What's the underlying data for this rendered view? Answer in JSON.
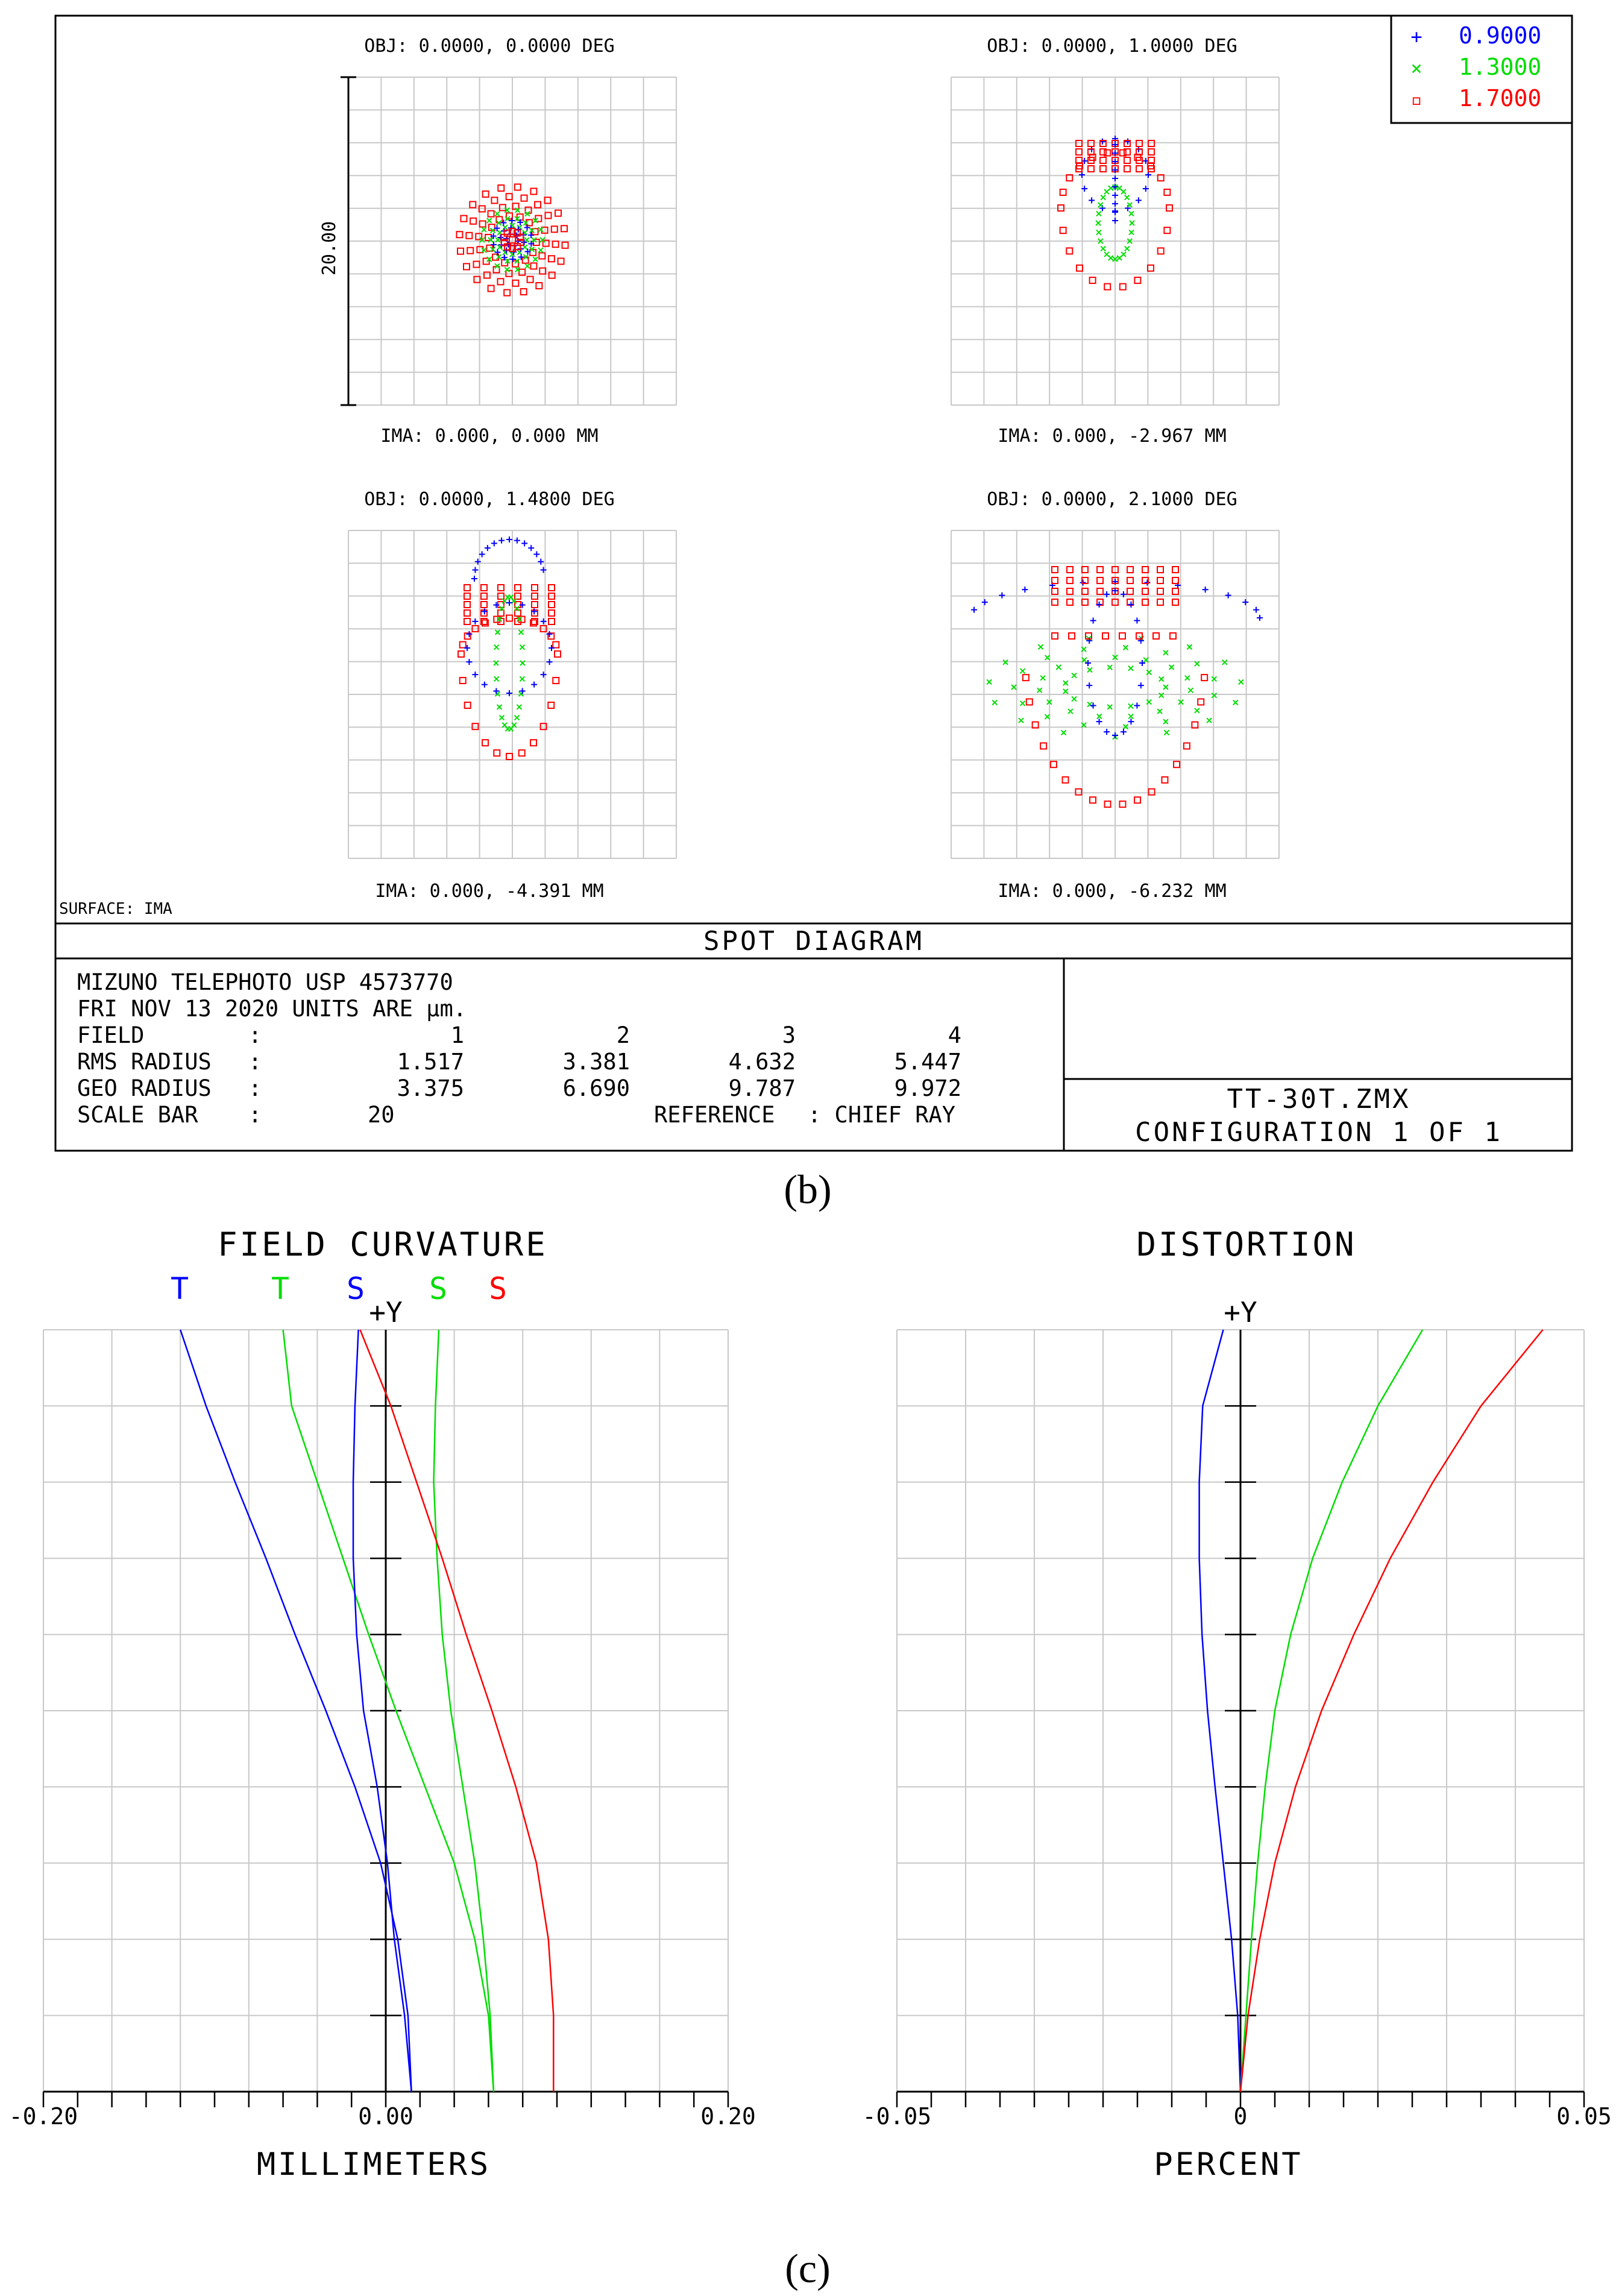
{
  "spot_panel": {
    "fields": [
      {
        "obj": "OBJ: 0.0000, 0.0000 DEG",
        "ima": "IMA: 0.000, 0.000 MM"
      },
      {
        "obj": "OBJ: 0.0000, 1.0000 DEG",
        "ima": "IMA: 0.000, -2.967 MM"
      },
      {
        "obj": "OBJ: 0.0000, 1.4800 DEG",
        "ima": "IMA: 0.000, -4.391 MM"
      },
      {
        "obj": "OBJ: 0.0000, 2.1000 DEG",
        "ima": "IMA: 0.000, -6.232 MM"
      }
    ],
    "scale_label": "20.00",
    "surface_label": "SURFACE: IMA",
    "legend": [
      {
        "symbol": "+",
        "label": "0.9000",
        "color": "#0000ff"
      },
      {
        "symbol": "×",
        "label": "1.3000",
        "color": "#00dd00"
      },
      {
        "symbol": "▫",
        "label": "1.7000",
        "color": "#ff0000"
      }
    ],
    "title": "SPOT DIAGRAM",
    "info": {
      "line1": "MIZUNO TELEPHOTO USP 4573770",
      "line2": "FRI NOV 13 2020  UNITS ARE µm.",
      "rows": [
        {
          "label": "FIELD",
          "colon": ":",
          "values": [
            "1",
            "2",
            "3",
            "4"
          ]
        },
        {
          "label": "RMS RADIUS",
          "colon": ":",
          "values": [
            "1.517",
            "3.381",
            "4.632",
            "5.447"
          ]
        },
        {
          "label": "GEO RADIUS",
          "colon": ":",
          "values": [
            "3.375",
            "6.690",
            "9.787",
            "9.972"
          ]
        }
      ],
      "scale_bar_label": "SCALE BAR",
      "scale_bar_colon": ":",
      "scale_bar_value": "20",
      "reference_label": "REFERENCE",
      "reference_value": ": CHIEF RAY"
    },
    "file_name": "TT-30T.ZMX",
    "configuration": "CONFIGURATION 1 OF 1"
  },
  "caption_b": "(b)",
  "caption_c": "(c)",
  "colors": {
    "blue": "#0000ff",
    "green": "#00dd00",
    "red": "#ff0000",
    "grid": "#c8c8c8",
    "ink": "#000000"
  },
  "chart_data": [
    {
      "type": "line",
      "title": "FIELD CURVATURE",
      "axis_label_top": "+Y",
      "xlabel": "MILLIMETERS",
      "ylabel": "",
      "xlim": [
        -0.2,
        0.2
      ],
      "ylim": [
        0,
        1
      ],
      "x_tick_labels": [
        "-0.20",
        "0.00",
        "0.20"
      ],
      "legend": [
        {
          "label": "T",
          "color": "#0000ff"
        },
        {
          "label": "T",
          "color": "#00dd00"
        },
        {
          "label": "S",
          "color": "#0000ff"
        },
        {
          "label": "S",
          "color": "#00dd00"
        },
        {
          "label": "S",
          "color": "#ff0000"
        }
      ],
      "series": [
        {
          "name": "T 0.9000",
          "color": "#0000ff",
          "y": [
            0,
            0.1,
            0.2,
            0.3,
            0.4,
            0.5,
            0.6,
            0.7,
            0.8,
            0.9,
            1.0
          ],
          "x": [
            0.015,
            0.013,
            0.007,
            -0.003,
            -0.018,
            -0.035,
            -0.053,
            -0.07,
            -0.088,
            -0.105,
            -0.12
          ]
        },
        {
          "name": "T 1.3000",
          "color": "#00dd00",
          "y": [
            0,
            0.1,
            0.2,
            0.3,
            0.4,
            0.5,
            0.6,
            0.7,
            0.8,
            0.9,
            1.0
          ],
          "x": [
            0.063,
            0.06,
            0.052,
            0.04,
            0.023,
            0.006,
            -0.01,
            -0.025,
            -0.04,
            -0.055,
            -0.06
          ]
        },
        {
          "name": "S 0.9000",
          "color": "#0000ff",
          "y": [
            0,
            0.1,
            0.2,
            0.3,
            0.4,
            0.5,
            0.6,
            0.7,
            0.8,
            0.9,
            1.0
          ],
          "x": [
            0.015,
            0.011,
            0.005,
            0.001,
            -0.005,
            -0.013,
            -0.017,
            -0.019,
            -0.019,
            -0.018,
            -0.016
          ]
        },
        {
          "name": "S 1.3000",
          "color": "#00dd00",
          "y": [
            0,
            0.1,
            0.2,
            0.3,
            0.4,
            0.5,
            0.6,
            0.7,
            0.8,
            0.9,
            1.0
          ],
          "x": [
            0.063,
            0.061,
            0.057,
            0.052,
            0.045,
            0.038,
            0.033,
            0.03,
            0.028,
            0.029,
            0.031
          ]
        },
        {
          "name": "S 1.7000",
          "color": "#ff0000",
          "y": [
            0,
            0.1,
            0.2,
            0.3,
            0.4,
            0.5,
            0.6,
            0.7,
            0.8,
            0.9,
            1.0
          ],
          "x": [
            0.098,
            0.098,
            0.095,
            0.088,
            0.076,
            0.062,
            0.047,
            0.033,
            0.018,
            0.003,
            -0.015
          ]
        }
      ]
    },
    {
      "type": "line",
      "title": "DISTORTION",
      "axis_label_top": "+Y",
      "xlabel": "PERCENT",
      "ylabel": "",
      "xlim": [
        -0.05,
        0.05
      ],
      "ylim": [
        0,
        1
      ],
      "x_tick_labels": [
        "-0.05",
        "0",
        "0.05"
      ],
      "series": [
        {
          "name": "0.9000",
          "color": "#0000ff",
          "y": [
            0,
            0.1,
            0.2,
            0.3,
            0.4,
            0.5,
            0.6,
            0.7,
            0.8,
            0.9,
            1.0
          ],
          "x": [
            0.0,
            -0.0004,
            -0.0013,
            -0.0025,
            -0.0037,
            -0.0048,
            -0.0056,
            -0.006,
            -0.006,
            -0.0055,
            -0.0025
          ]
        },
        {
          "name": "1.3000",
          "color": "#00dd00",
          "y": [
            0,
            0.1,
            0.2,
            0.3,
            0.4,
            0.5,
            0.6,
            0.7,
            0.8,
            0.9,
            1.0
          ],
          "x": [
            0.0,
            0.0008,
            0.0016,
            0.0025,
            0.0036,
            0.005,
            0.0073,
            0.0105,
            0.0148,
            0.02,
            0.0265
          ]
        },
        {
          "name": "1.7000",
          "color": "#ff0000",
          "y": [
            0,
            0.1,
            0.2,
            0.3,
            0.4,
            0.5,
            0.6,
            0.7,
            0.8,
            0.9,
            1.0
          ],
          "x": [
            0.0,
            0.0011,
            0.0028,
            0.005,
            0.008,
            0.0118,
            0.0165,
            0.0218,
            0.028,
            0.035,
            0.044
          ]
        }
      ]
    }
  ]
}
